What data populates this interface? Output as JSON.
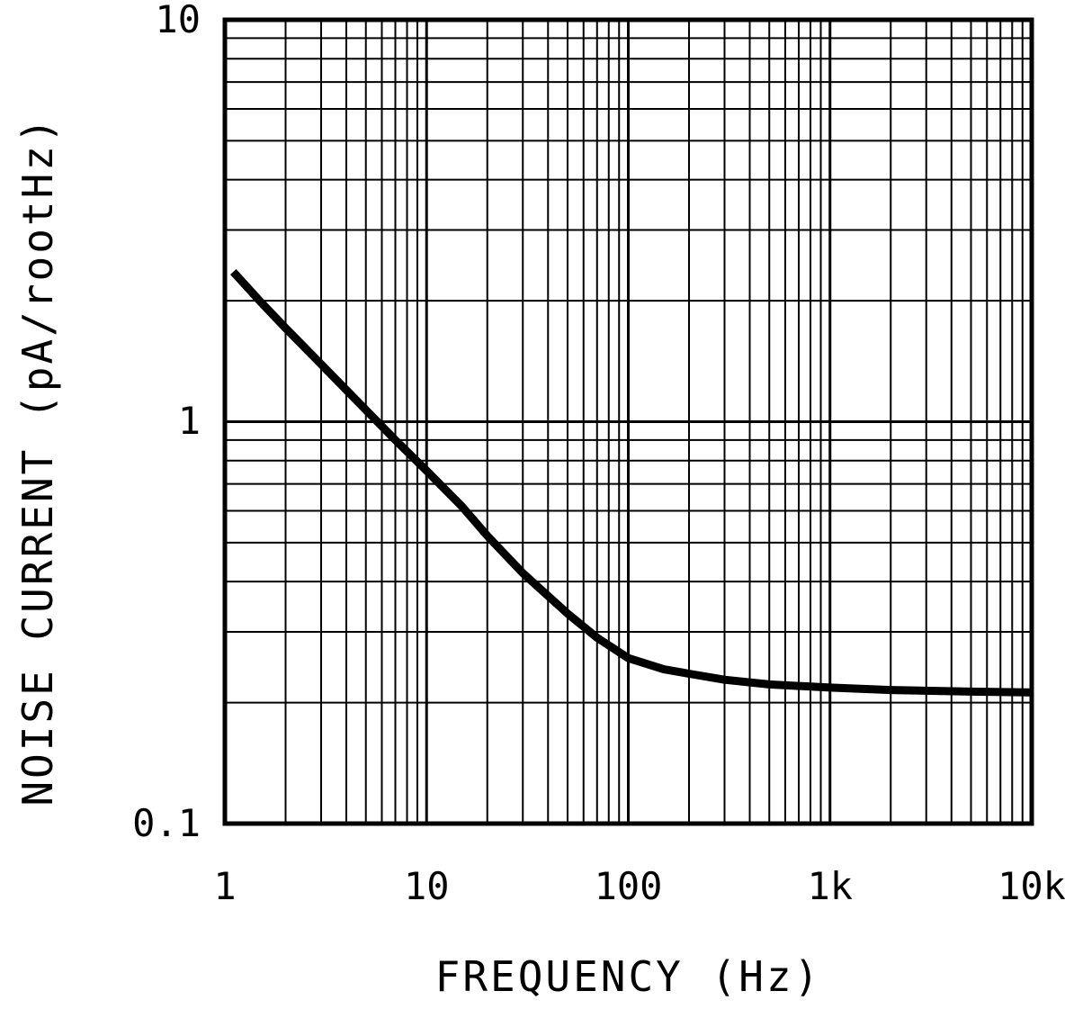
{
  "figure": {
    "background_color": "#ffffff",
    "line_color": "#000000"
  },
  "chart_data": {
    "type": "line",
    "scale": "log-log",
    "title": "",
    "xlabel": "FREQUENCY (Hz)",
    "ylabel": "NOISE CURRENT (pA/rootHz)",
    "xlim": [
      1,
      10000
    ],
    "ylim": [
      0.1,
      10
    ],
    "x_tick_labels": [
      "1",
      "10",
      "100",
      "1k",
      "10k"
    ],
    "x_tick_values": [
      1,
      10,
      100,
      1000,
      10000
    ],
    "y_tick_labels": [
      "10",
      "1",
      "0.1"
    ],
    "y_tick_values": [
      10,
      1,
      0.1
    ],
    "grid": "on, log decades with minor lines 2-9",
    "legend": "none",
    "series": [
      {
        "name": "noise-current",
        "color": "#000000",
        "stroke_width_px": 9,
        "points": [
          [
            1.1,
            2.36
          ],
          [
            1.5,
            1.99
          ],
          [
            2,
            1.71
          ],
          [
            3,
            1.39
          ],
          [
            5,
            1.07
          ],
          [
            7,
            0.9
          ],
          [
            10,
            0.755
          ],
          [
            15,
            0.615
          ],
          [
            20,
            0.52
          ],
          [
            30,
            0.42
          ],
          [
            50,
            0.333
          ],
          [
            70,
            0.29
          ],
          [
            100,
            0.258
          ],
          [
            150,
            0.242
          ],
          [
            200,
            0.236
          ],
          [
            300,
            0.228
          ],
          [
            500,
            0.222
          ],
          [
            1000,
            0.218
          ],
          [
            2000,
            0.215
          ],
          [
            5000,
            0.213
          ],
          [
            10000,
            0.212
          ]
        ]
      }
    ]
  }
}
